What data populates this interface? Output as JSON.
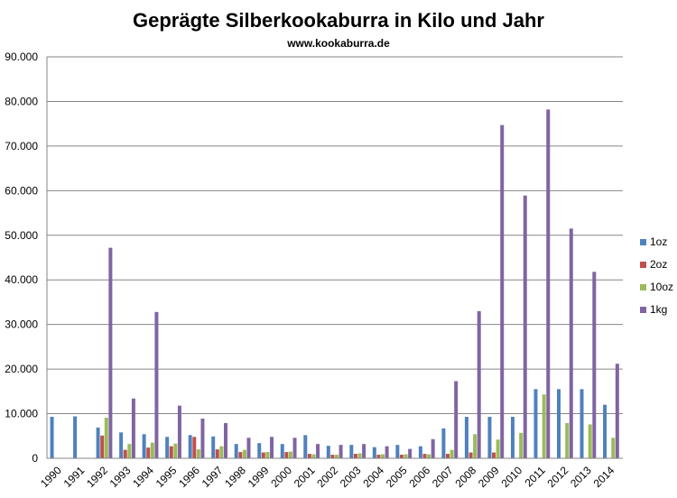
{
  "chart_data": {
    "type": "bar",
    "title": "Geprägte Silberkookaburra in Kilo und Jahr",
    "subtitle": "www.kookaburra.de",
    "xlabel": "",
    "ylabel": "",
    "ylim": [
      0,
      90000
    ],
    "yticks": [
      0,
      10000,
      20000,
      30000,
      40000,
      50000,
      60000,
      70000,
      80000,
      90000
    ],
    "ytick_labels": [
      "0",
      "10.000",
      "20.000",
      "30.000",
      "40.000",
      "50.000",
      "60.000",
      "70.000",
      "80.000",
      "90.000"
    ],
    "grid": true,
    "legend": "right",
    "categories": [
      "1990",
      "1991",
      "1992",
      "1993",
      "1994",
      "1995",
      "1996",
      "1997",
      "1998",
      "1999",
      "2000",
      "2001",
      "2002",
      "2003",
      "2004",
      "2005",
      "2006",
      "2007",
      "2008",
      "2009",
      "2010",
      "2011",
      "2012",
      "2013",
      "2014"
    ],
    "series": [
      {
        "name": "1oz",
        "color": "#4f81bd",
        "values": [
          9300,
          9400,
          6900,
          5800,
          5400,
          4800,
          5200,
          4900,
          3200,
          3400,
          3200,
          5200,
          2800,
          3000,
          2500,
          3000,
          2700,
          6700,
          9300,
          9300,
          9300,
          15500,
          15500,
          15500,
          12000
        ]
      },
      {
        "name": "2oz",
        "color": "#c0504d",
        "values": [
          0,
          0,
          5100,
          1900,
          2400,
          2700,
          4800,
          2000,
          1400,
          1300,
          1400,
          1000,
          800,
          1000,
          800,
          800,
          1000,
          1000,
          1300,
          1300,
          0,
          0,
          0,
          0,
          0
        ]
      },
      {
        "name": "10oz",
        "color": "#9bbb59",
        "values": [
          0,
          0,
          9100,
          3200,
          3500,
          3300,
          2000,
          2700,
          1900,
          1400,
          1500,
          900,
          800,
          1100,
          900,
          900,
          900,
          1900,
          5400,
          4200,
          5700,
          14300,
          7900,
          7600,
          4600
        ]
      },
      {
        "name": "1kg",
        "color": "#8064a2",
        "values": [
          0,
          0,
          47200,
          13400,
          32800,
          11800,
          8900,
          7900,
          4600,
          4800,
          4600,
          3200,
          3000,
          3200,
          2700,
          2100,
          4300,
          17300,
          33000,
          74700,
          58900,
          78200,
          51500,
          41800,
          21200
        ]
      }
    ]
  }
}
